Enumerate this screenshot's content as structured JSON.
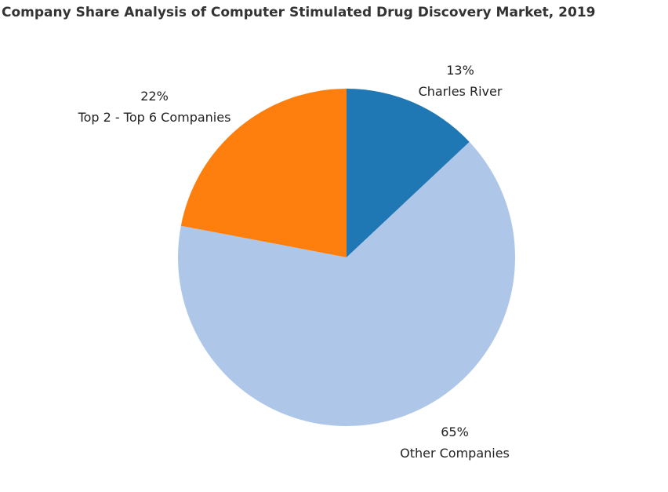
{
  "chart_data": {
    "type": "pie",
    "title": "Company Share Analysis of Computer Stimulated Drug Discovery Market, 2019",
    "start_angle_note": "clockwise from top",
    "slices": [
      {
        "label": "Charles River",
        "value": 13,
        "value_label": "13%",
        "color": "#1f77b4"
      },
      {
        "label": "Other Companies",
        "value": 65,
        "value_label": "65%",
        "color": "#aec7e8"
      },
      {
        "label": "Top 2 - Top 6 Companies",
        "value": 22,
        "value_label": "22%",
        "color": "#ff7f0e"
      }
    ]
  }
}
